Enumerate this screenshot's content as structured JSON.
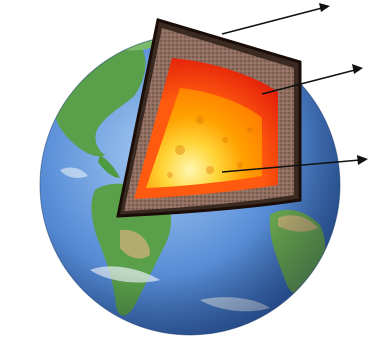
{
  "diagram": {
    "subject": "earth-interior-cutaway",
    "layers": [
      {
        "name": "crust",
        "color": "#3a2a22"
      },
      {
        "name": "mantle",
        "color": "#8a6a5a"
      },
      {
        "name": "outer-core",
        "color": "#ff3a10"
      },
      {
        "name": "inner-core",
        "color": "#ffd040"
      }
    ],
    "pointers": [
      {
        "target": "crust",
        "direction": "right"
      },
      {
        "target": "mantle",
        "direction": "right"
      },
      {
        "target": "inner-core",
        "direction": "right"
      }
    ],
    "colors": {
      "ocean": "#5a8fd8",
      "land": "#5aa04a",
      "desert": "#c8b078",
      "cloud": "#e8f0f8",
      "arrow": "#111111"
    }
  }
}
